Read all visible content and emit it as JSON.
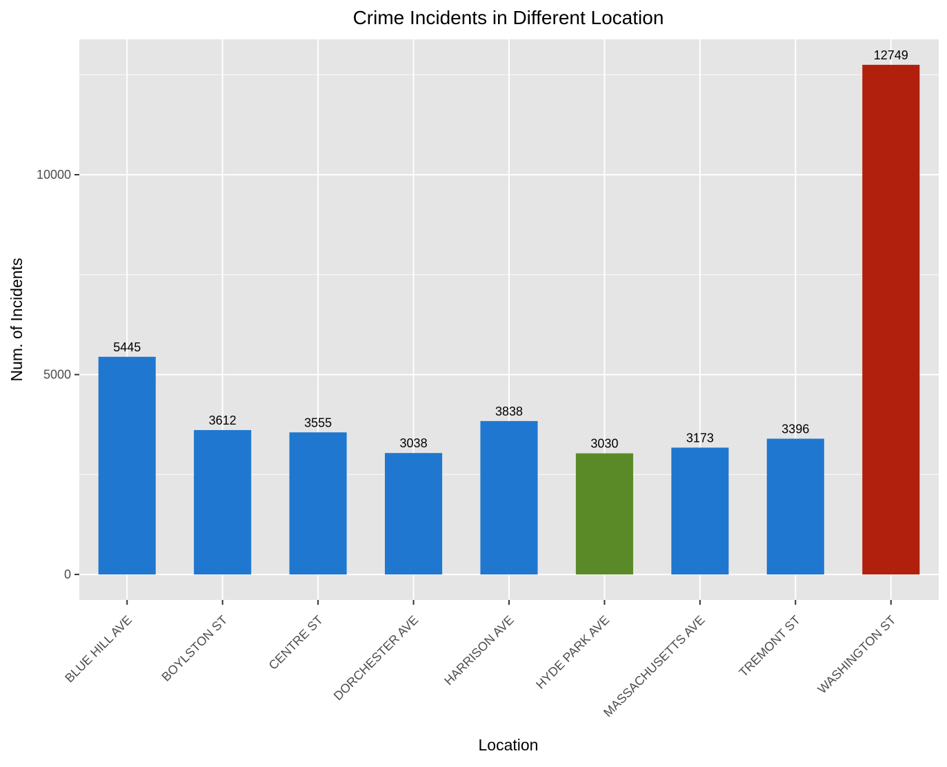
{
  "chart_data": {
    "type": "bar",
    "title": "Crime Incidents in Different Location",
    "xlabel": "Location",
    "ylabel": "Num. of Incidents",
    "categories": [
      "BLUE HILL AVE",
      "BOYLSTON ST",
      "CENTRE ST",
      "DORCHESTER AVE",
      "HARRISON AVE",
      "HYDE PARK AVE",
      "MASSACHUSETTS AVE",
      "TREMONT ST",
      "WASHINGTON ST"
    ],
    "values": [
      5445,
      3612,
      3555,
      3038,
      3838,
      3030,
      3173,
      3396,
      12749
    ],
    "data_labels": [
      "5445",
      "3612",
      "3555",
      "3038",
      "3838",
      "3030",
      "3173",
      "3396",
      "12749"
    ],
    "bar_colors": [
      "#1f77cf",
      "#1f77cf",
      "#1f77cf",
      "#1f77cf",
      "#1f77cf",
      "#5a8a28",
      "#1f77cf",
      "#1f77cf",
      "#b0200c"
    ],
    "y_ticks": [
      0,
      5000,
      10000
    ],
    "y_tick_labels": [
      "0",
      "5000",
      "10000"
    ],
    "ylim": [
      -637,
      13386
    ],
    "grid": true,
    "panel_background": "#e5e5e5",
    "grid_color": "#ffffff",
    "legend": "none"
  }
}
